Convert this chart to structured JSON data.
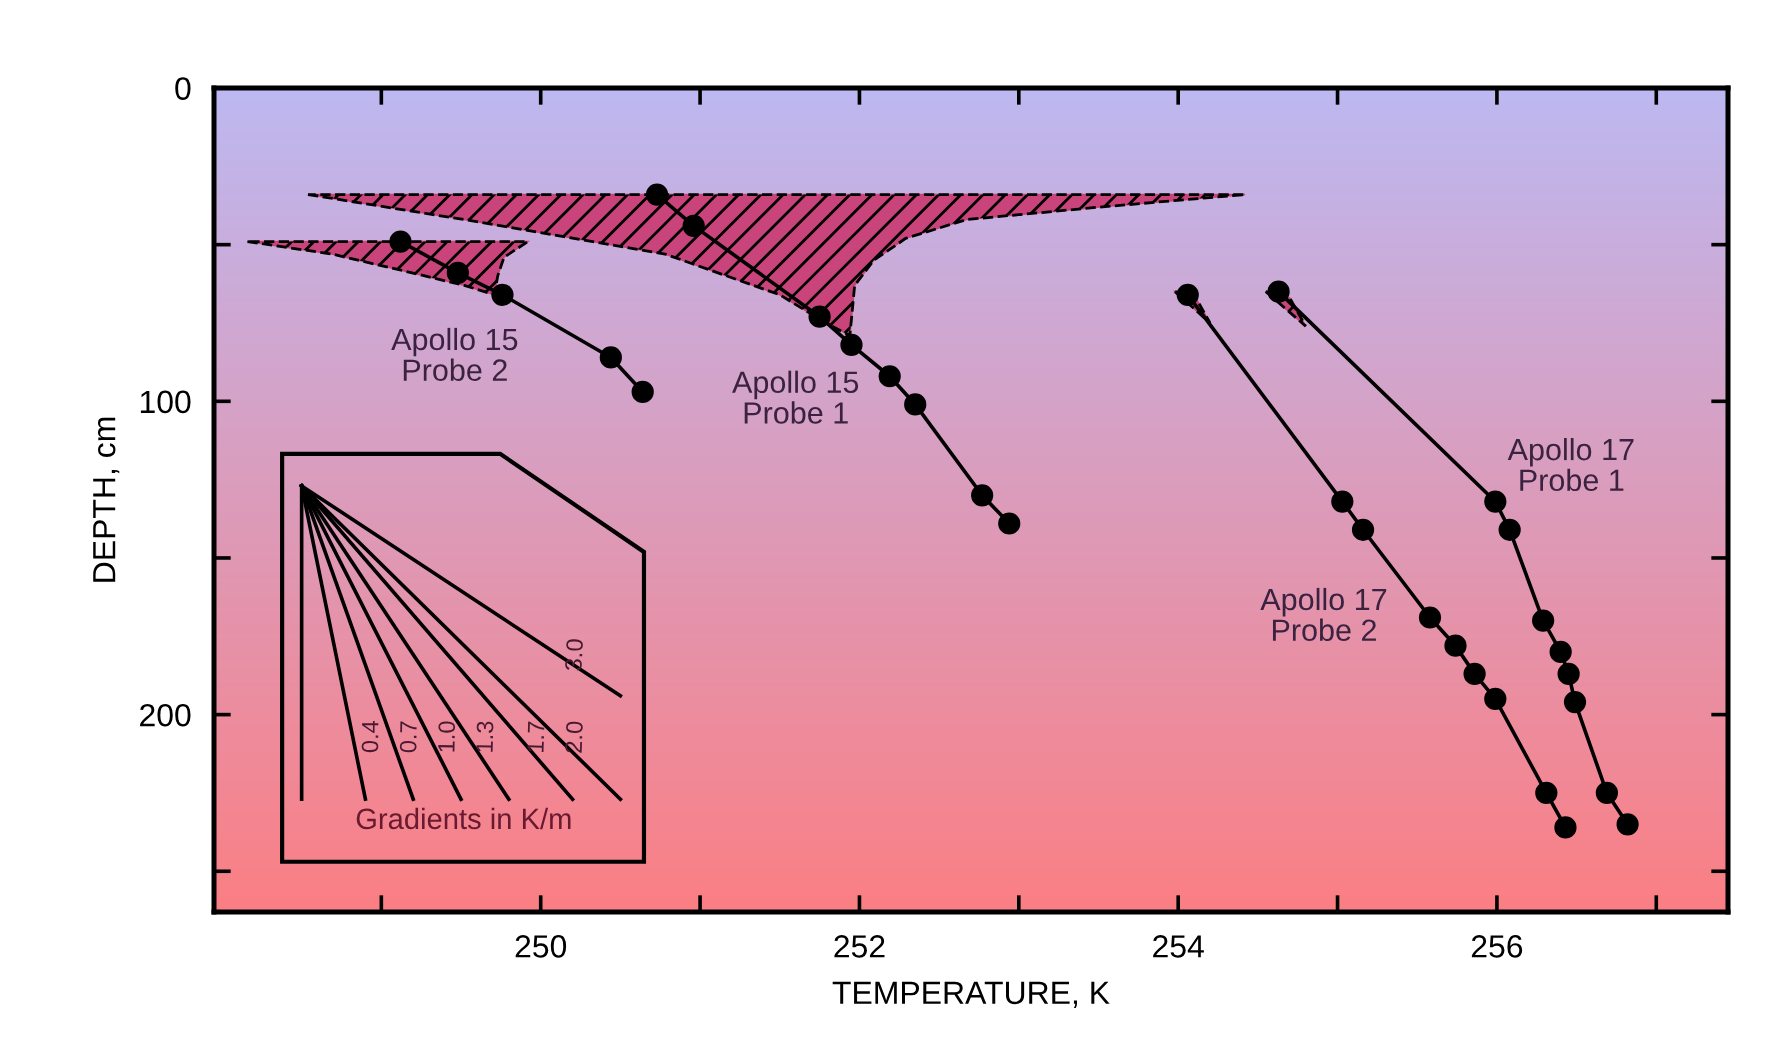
{
  "chart_data": {
    "type": "line",
    "xlabel": "TEMPERATURE, K",
    "ylabel": "DEPTH, cm",
    "xlim": [
      247.95,
      257.45
    ],
    "ylim": [
      263,
      0
    ],
    "xticks": [
      {
        "value": 249,
        "label": null
      },
      250,
      {
        "value": 251,
        "label": null
      },
      252,
      {
        "value": 253,
        "label": null
      },
      254,
      {
        "value": 255,
        "label": null
      },
      256,
      {
        "value": 257,
        "label": null
      }
    ],
    "yticks": [
      0,
      {
        "value": 50,
        "label": null
      },
      100,
      {
        "value": 150,
        "label": null
      },
      200,
      {
        "value": 250,
        "label": null
      }
    ],
    "grid": false,
    "legend": false,
    "marker": "circle",
    "line_style": "solid",
    "annotations": [
      "Gradients in K/m"
    ],
    "series": [
      {
        "type": "area",
        "color": "#c8447a",
        "marker": "none",
        "x": [
          248.16,
          248.69,
          249.11,
          249.52,
          249.71,
          249.73,
          249.77,
          249.92
        ],
        "values": [
          49,
          53,
          58,
          63,
          66,
          60,
          54,
          49
        ]
      },
      {
        "type": "area",
        "color": "#c8447a",
        "marker": "none",
        "x": [
          248.54,
          249.52,
          250.78,
          251.5,
          251.79,
          251.94,
          251.97,
          252.09,
          252.29,
          252.67,
          253.51,
          254.42
        ],
        "values": [
          34,
          42,
          53,
          66,
          75,
          79,
          63,
          55,
          48,
          42,
          38,
          34
        ]
      },
      {
        "type": "area",
        "color": "#c8447a",
        "marker": "none",
        "x": [
          253.98,
          254.2,
          254.1
        ],
        "values": [
          65,
          75,
          66
        ]
      },
      {
        "type": "area",
        "color": "#c8447a",
        "marker": "none",
        "x": [
          254.55,
          254.8,
          254.7
        ],
        "values": [
          65,
          76,
          67
        ]
      },
      {
        "name": "Apollo 15\nProbe 2",
        "color": "#000000",
        "x": [
          249.12,
          249.48,
          249.76,
          250.44,
          250.64
        ],
        "values": [
          49,
          59,
          66,
          86,
          97
        ]
      },
      {
        "name": "Apollo 15\nProbe 1",
        "color": "#000000",
        "x": [
          250.73,
          250.96,
          251.75,
          251.95,
          252.19,
          252.35,
          252.77,
          252.94
        ],
        "values": [
          34,
          44,
          73,
          82,
          92,
          101,
          130,
          139
        ]
      },
      {
        "name": "Apollo 17\nProbe 2",
        "color": "#000000",
        "x": [
          254.06,
          255.03,
          255.16,
          255.58,
          255.74,
          255.86,
          255.99,
          256.31,
          256.43
        ],
        "values": [
          66,
          132,
          141,
          169,
          178,
          187,
          195,
          225,
          236
        ]
      },
      {
        "name": "Apollo 17\nProbe 1",
        "color": "#000000",
        "x": [
          254.63,
          255.99,
          256.08,
          256.29,
          256.4,
          256.45,
          256.49,
          256.69,
          256.82
        ],
        "values": [
          65,
          132,
          141,
          170,
          180,
          187,
          196,
          225,
          235
        ]
      },
      {
        "color": "#000000",
        "marker": "none",
        "x": [
          248.5,
          248.5
        ],
        "values": [
          127,
          227
        ]
      },
      {
        "name": "0.4",
        "color": "#000000",
        "marker": "none",
        "x": [
          248.5,
          248.9
        ],
        "values": [
          127,
          227
        ]
      },
      {
        "name": "0.7",
        "color": "#000000",
        "marker": "none",
        "x": [
          248.5,
          249.2
        ],
        "values": [
          127,
          227
        ]
      },
      {
        "name": "1.0",
        "color": "#000000",
        "marker": "none",
        "x": [
          248.5,
          249.5
        ],
        "values": [
          127,
          227
        ]
      },
      {
        "name": "1.3",
        "color": "#000000",
        "marker": "none",
        "x": [
          248.5,
          249.8
        ],
        "values": [
          127,
          227
        ]
      },
      {
        "name": "1.7",
        "color": "#000000",
        "marker": "none",
        "x": [
          248.5,
          250.2
        ],
        "values": [
          127,
          227
        ]
      },
      {
        "name": "2.0",
        "color": "#000000",
        "marker": "none",
        "x": [
          248.5,
          250.5
        ],
        "values": [
          127,
          227
        ]
      },
      {
        "name": "3.0",
        "color": "#000000",
        "marker": "none",
        "x": [
          248.5,
          250.5
        ],
        "values": [
          127,
          194
        ]
      }
    ]
  }
}
